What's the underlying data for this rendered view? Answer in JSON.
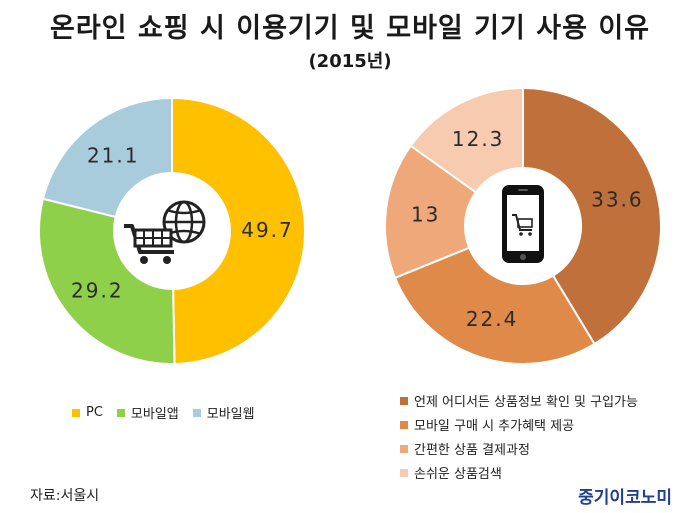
{
  "title": "온라인 쇼핑 시 이용기기 및 모바일 기기 사용 이유",
  "subtitle": "(2015년)",
  "source": "자료:서울시",
  "brand": "중기이코노미",
  "chart_data": [
    {
      "type": "pie",
      "donut": true,
      "title": "",
      "start": "12 o'clock, clockwise",
      "center_icon": "shopping-cart-globe-icon",
      "legend_position": "bottom-left",
      "series": [
        {
          "name": "PC",
          "value": 49.7,
          "label": "49.7",
          "color": "#ffc000"
        },
        {
          "name": "모바일앱",
          "value": 29.2,
          "label": "29.2",
          "color": "#8fd04a"
        },
        {
          "name": "모바일웹",
          "value": 21.1,
          "label": "21.1",
          "color": "#a9ccdc"
        }
      ]
    },
    {
      "type": "pie",
      "donut": true,
      "title": "",
      "start": "12 o'clock, clockwise",
      "center_icon": "smartphone-cart-icon",
      "legend_position": "bottom-right",
      "series": [
        {
          "name": "언제 어디서든 상품정보 확인 및 구입가능",
          "value": 33.6,
          "label": "33.6",
          "color": "#c0703a"
        },
        {
          "name": "모바일 구매 시 추가혜택 제공",
          "value": 22.4,
          "label": "22.4",
          "color": "#e08a4a"
        },
        {
          "name": "간편한 상품 결제과정",
          "value": 13,
          "label": "13",
          "color": "#eea87a"
        },
        {
          "name": "손쉬운 상품검색",
          "value": 12.3,
          "label": "12.3",
          "color": "#f6cbb0"
        }
      ]
    }
  ]
}
